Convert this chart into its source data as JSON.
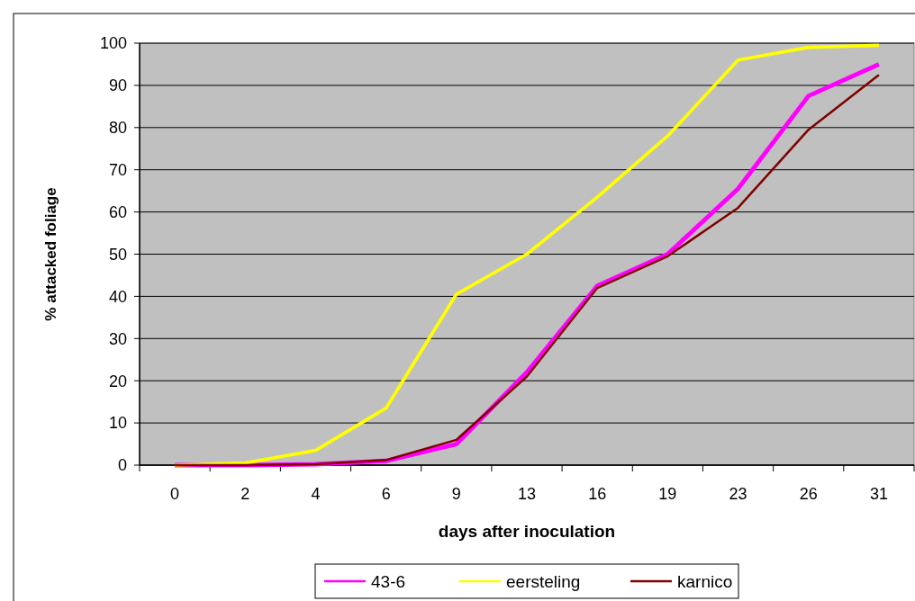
{
  "chart_data": {
    "type": "line",
    "xlabel": "days after inoculation",
    "ylabel": "% attacked foliage",
    "categories": [
      "0",
      "2",
      "4",
      "6",
      "9",
      "13",
      "16",
      "19",
      "23",
      "26",
      "31"
    ],
    "ylim": [
      0,
      100
    ],
    "yticks": [
      0,
      10,
      20,
      30,
      40,
      50,
      60,
      70,
      80,
      90,
      100
    ],
    "grid": "y",
    "legend": "bottom",
    "marker": "none",
    "series": [
      {
        "name": "43-6",
        "color": "#ff00ff",
        "values": [
          0,
          0,
          0.2,
          1,
          5,
          22,
          42.5,
          50,
          65.5,
          87.5,
          95
        ]
      },
      {
        "name": "eersteling",
        "color": "#ffff00",
        "values": [
          0,
          0.5,
          3.5,
          13.5,
          40.5,
          50,
          63.5,
          78,
          96,
          99,
          99.5
        ]
      },
      {
        "name": "karnico",
        "color": "#800000",
        "values": [
          0,
          0,
          0.2,
          1.2,
          6,
          21,
          42,
          49.5,
          61,
          79.5,
          92.5
        ]
      }
    ]
  }
}
